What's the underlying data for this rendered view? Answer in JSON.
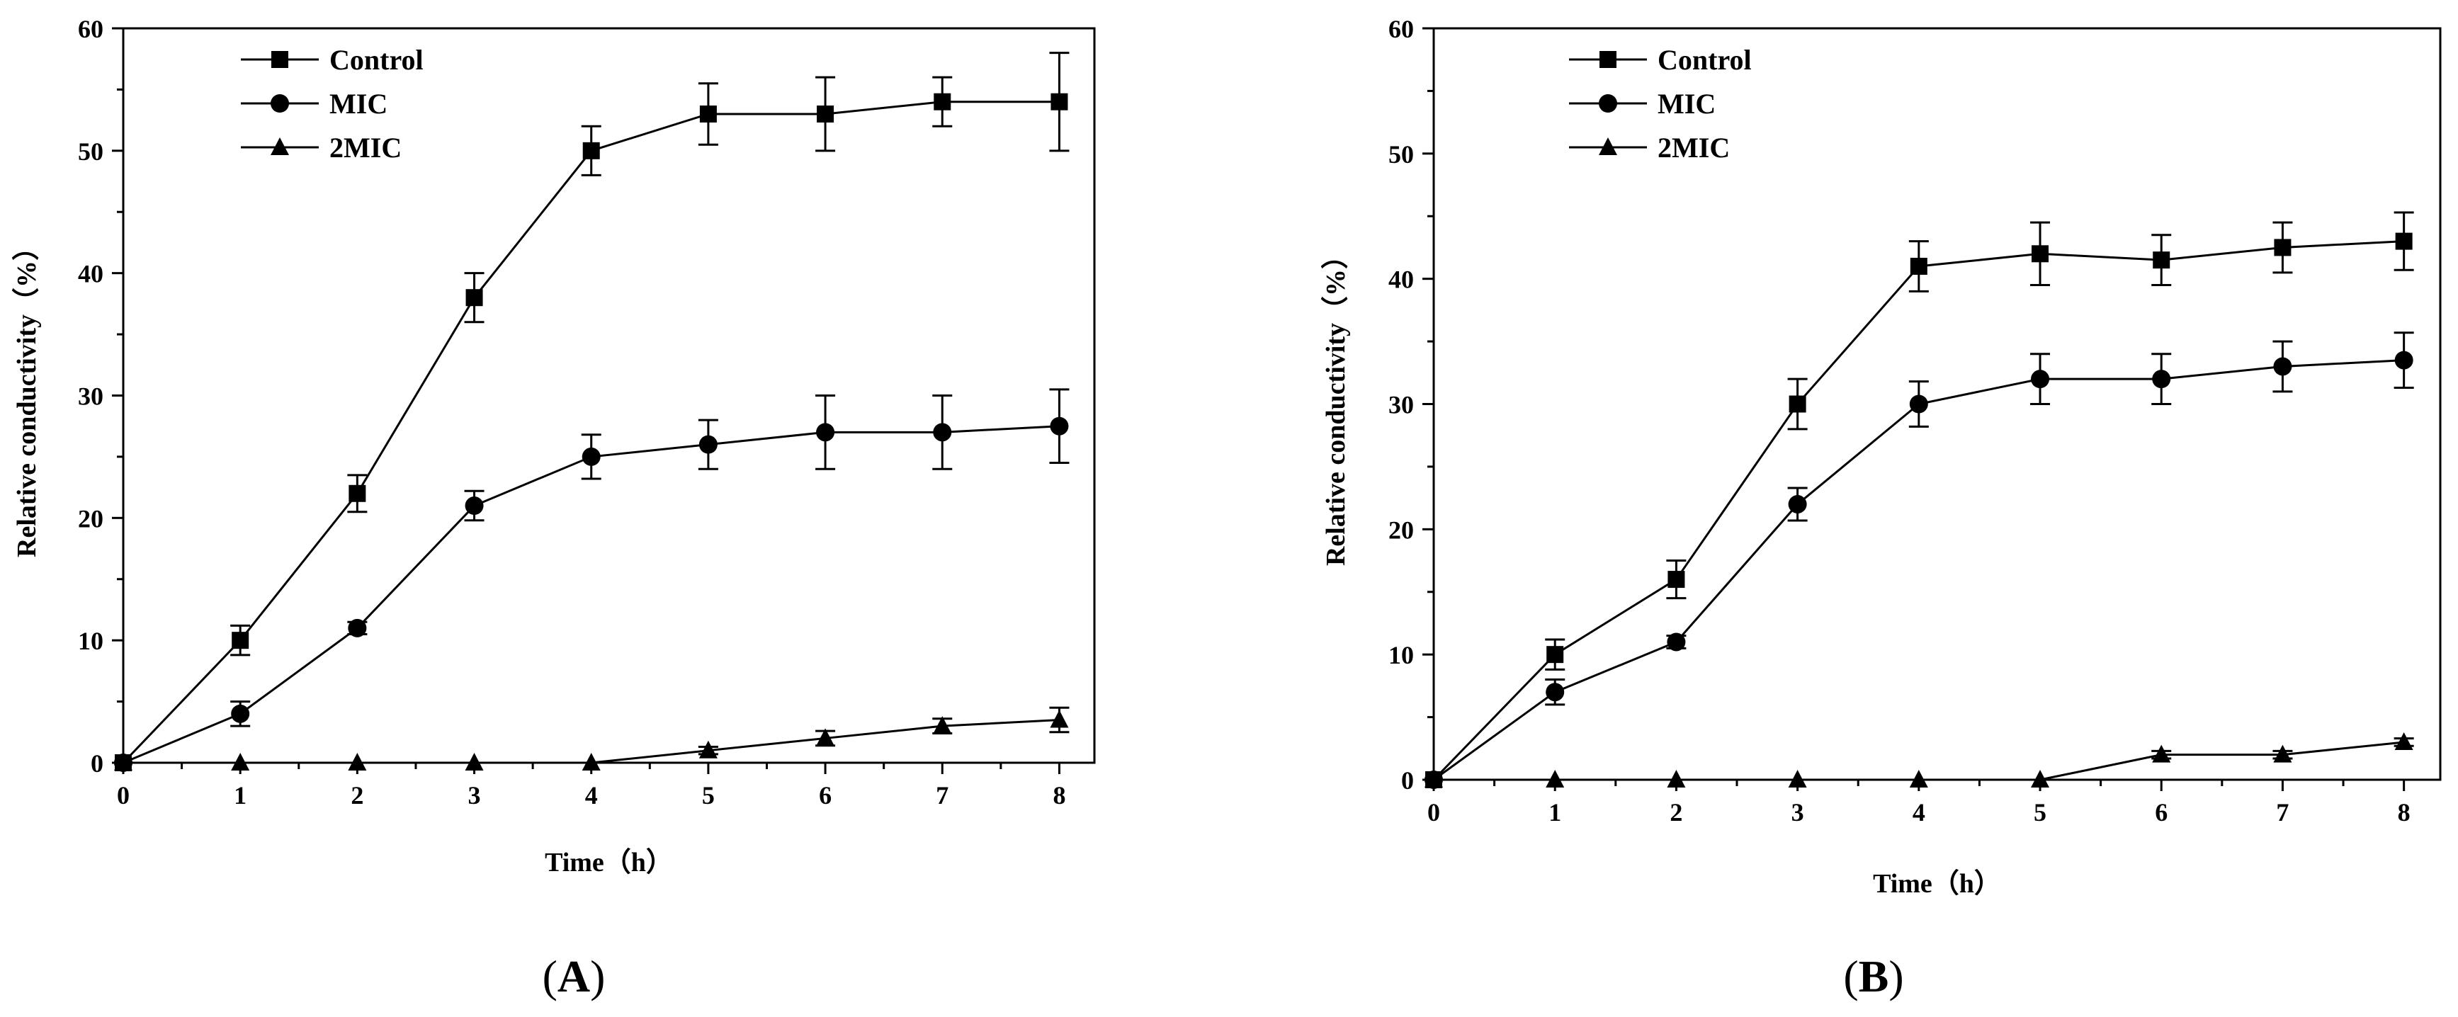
{
  "chart_data": [
    {
      "type": "line",
      "panel_label": "A",
      "xlabel": "Time（h）",
      "ylabel": "Relative conductivity（%）",
      "x": [
        0,
        1,
        2,
        3,
        4,
        5,
        6,
        7,
        8
      ],
      "xlim": [
        0,
        8.3
      ],
      "ylim": [
        0,
        60
      ],
      "xticks": [
        "0",
        "1",
        "2",
        "3",
        "4",
        "5",
        "6",
        "7",
        "8"
      ],
      "yticks": [
        "0",
        "10",
        "20",
        "30",
        "40",
        "50",
        "60"
      ],
      "legend_position": "top-left",
      "grid": false,
      "series": [
        {
          "name": "Control",
          "marker": "square",
          "values": [
            0,
            10,
            22,
            38,
            50,
            53,
            53,
            54,
            54
          ],
          "errors": [
            0,
            1.2,
            1.5,
            2,
            2,
            2.5,
            3,
            2,
            4
          ]
        },
        {
          "name": "MIC",
          "marker": "circle",
          "values": [
            0,
            4,
            11,
            21,
            25,
            26,
            27,
            27,
            27.5
          ],
          "errors": [
            0,
            1,
            0.5,
            1.2,
            1.8,
            2,
            3,
            3,
            3
          ]
        },
        {
          "name": "2MIC",
          "marker": "triangle",
          "values": [
            0,
            0,
            0,
            0,
            0,
            1,
            2,
            3,
            3.5
          ],
          "errors": [
            0,
            0,
            0,
            0,
            0,
            0.3,
            0.6,
            0.6,
            1
          ]
        }
      ]
    },
    {
      "type": "line",
      "panel_label": "B",
      "xlabel": "Time（h）",
      "ylabel": "Relative conductivity（%）",
      "x": [
        0,
        1,
        2,
        3,
        4,
        5,
        6,
        7,
        8
      ],
      "xlim": [
        0,
        8.3
      ],
      "ylim": [
        0,
        60
      ],
      "xticks": [
        "0",
        "1",
        "2",
        "3",
        "4",
        "5",
        "6",
        "7",
        "8"
      ],
      "yticks": [
        "0",
        "10",
        "20",
        "30",
        "40",
        "50",
        "60"
      ],
      "legend_position": "top-left",
      "grid": false,
      "series": [
        {
          "name": "Control",
          "marker": "square",
          "values": [
            0,
            10,
            16,
            30,
            41,
            42,
            41.5,
            42.5,
            43
          ],
          "errors": [
            0,
            1.2,
            1.5,
            2,
            2,
            2.5,
            2,
            2,
            2.3
          ]
        },
        {
          "name": "MIC",
          "marker": "circle",
          "values": [
            0,
            7,
            11,
            22,
            30,
            32,
            32,
            33,
            33.5
          ],
          "errors": [
            0,
            1,
            0.5,
            1.3,
            1.8,
            2,
            2,
            2,
            2.2
          ]
        },
        {
          "name": "2MIC",
          "marker": "triangle",
          "values": [
            0,
            0,
            0,
            0,
            0,
            0,
            2,
            2,
            3
          ],
          "errors": [
            0,
            0,
            0,
            0,
            0,
            0,
            0.3,
            0.3,
            0.3
          ]
        }
      ]
    }
  ],
  "panels": [
    {
      "open": "(",
      "letter": "A",
      "close": ")"
    },
    {
      "open": "(",
      "letter": "B",
      "close": ")"
    }
  ]
}
